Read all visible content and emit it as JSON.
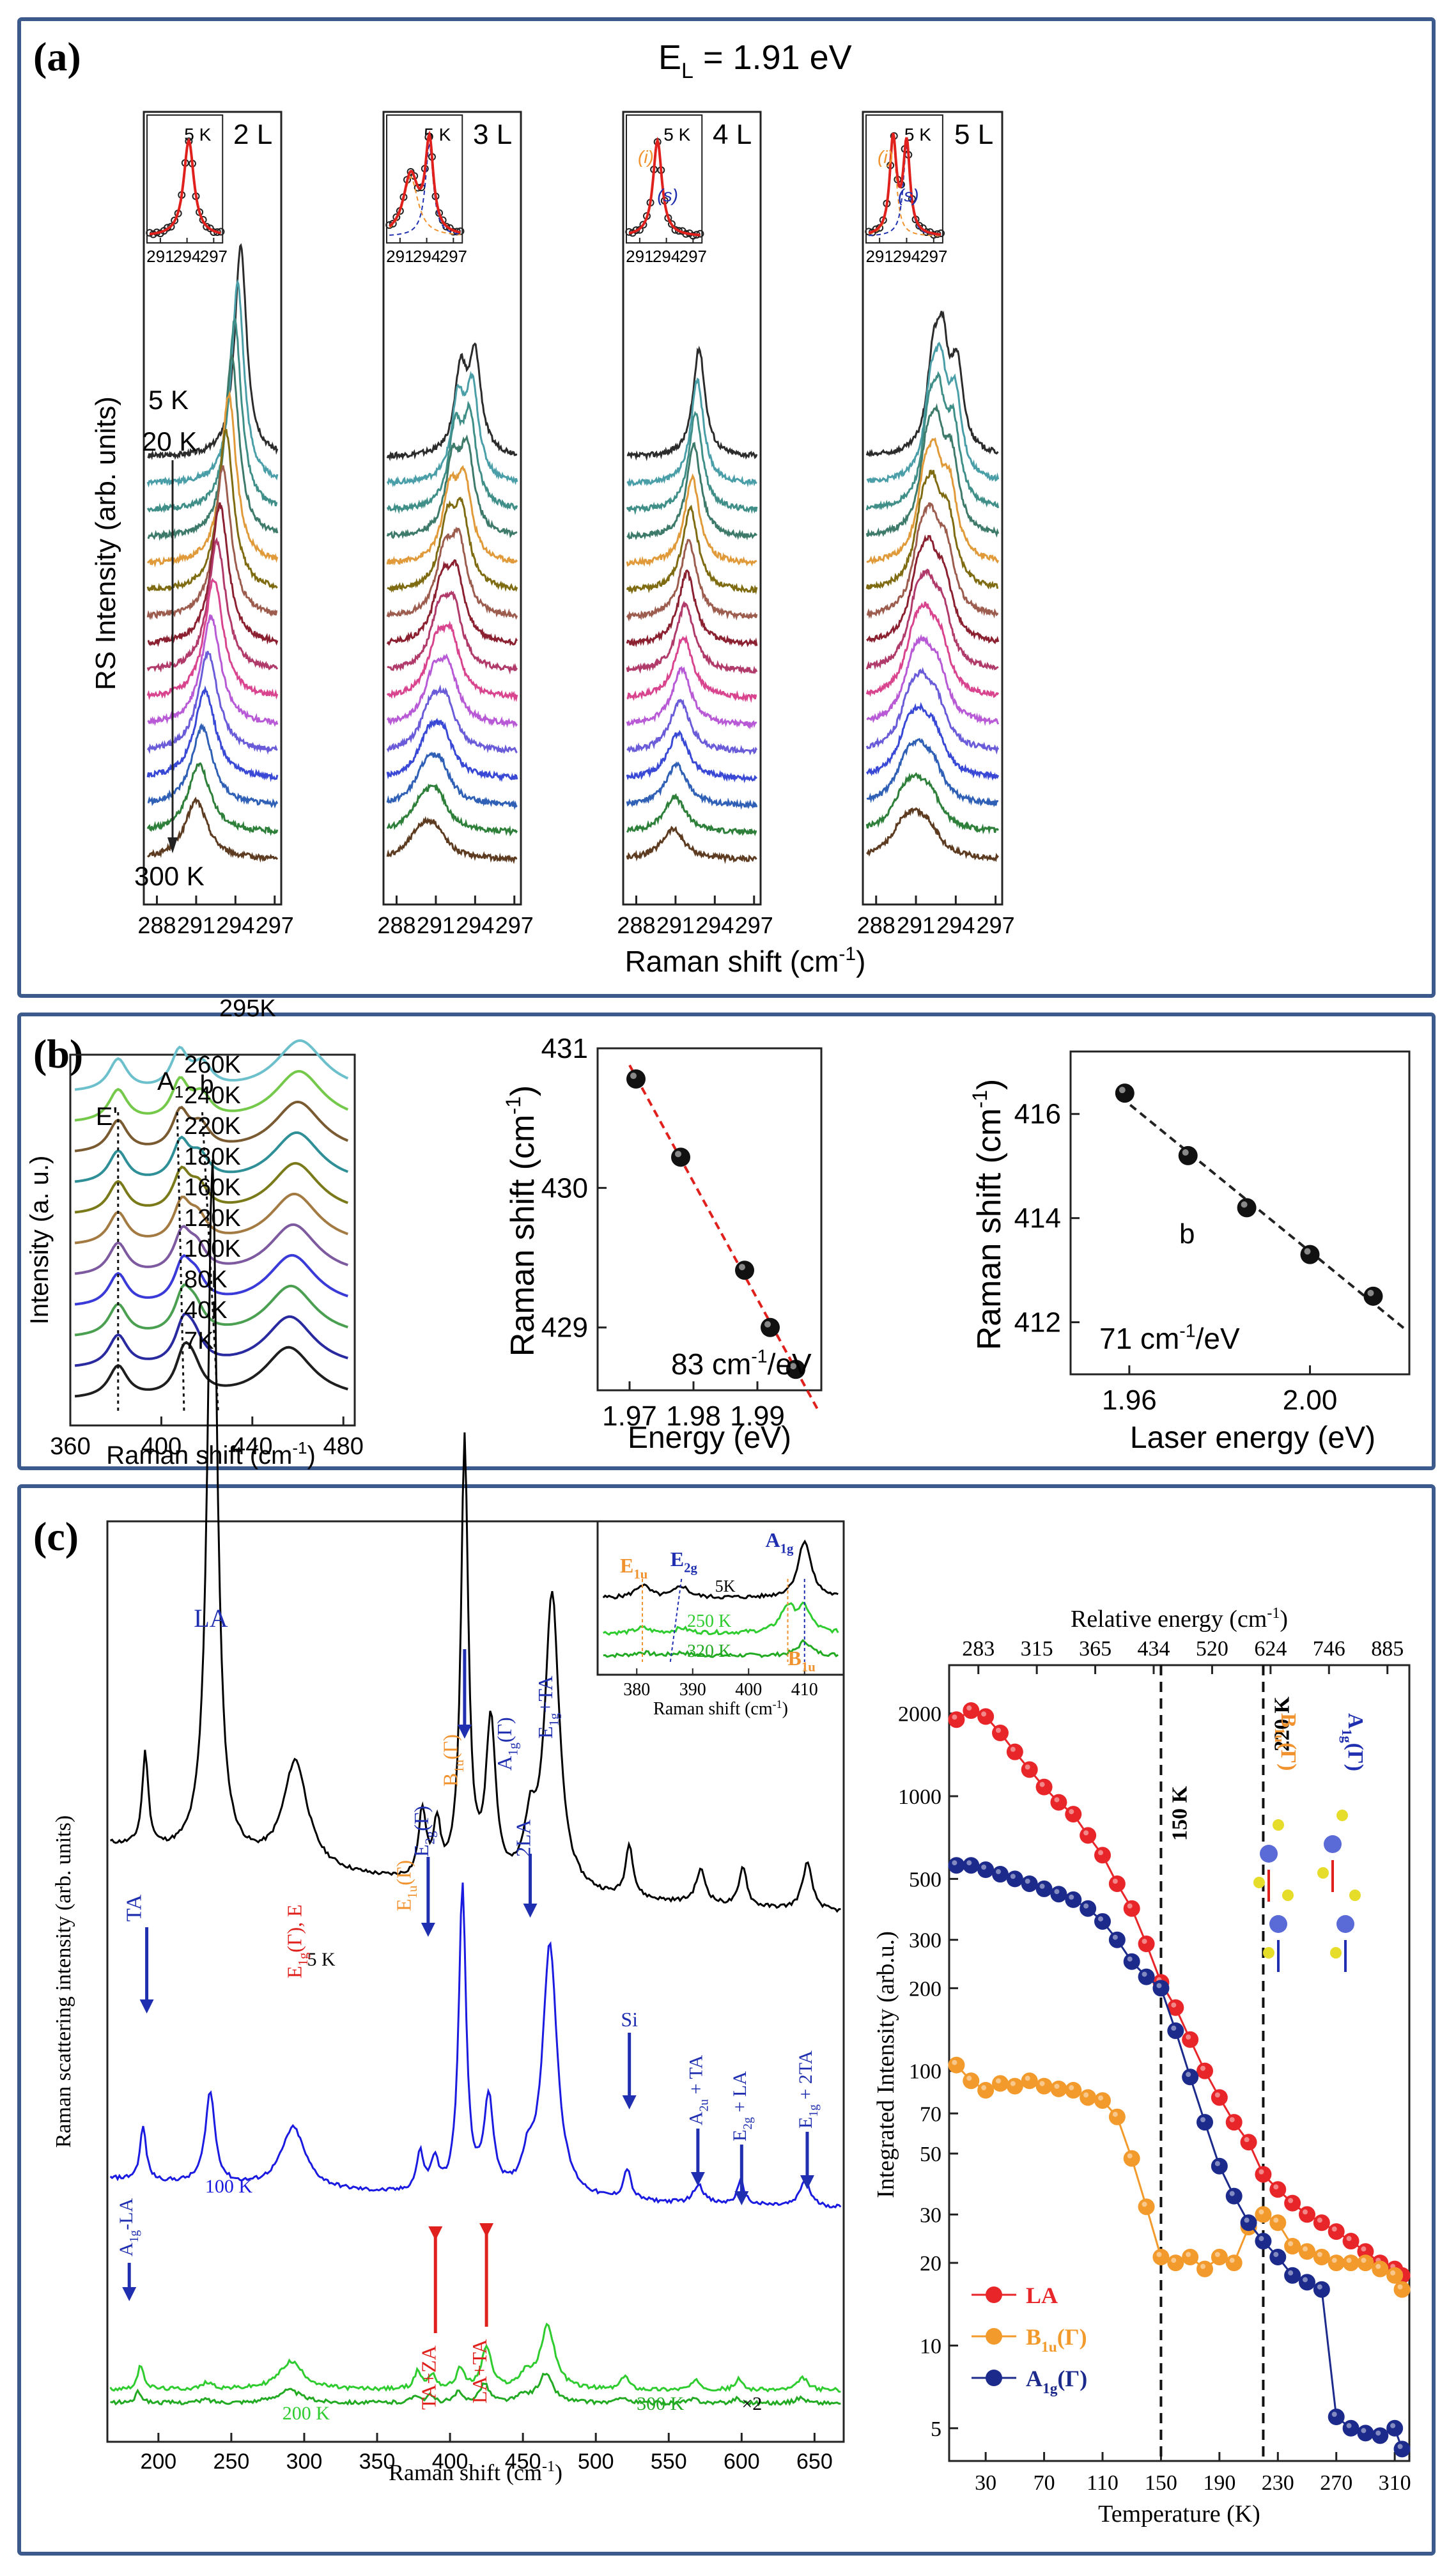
{
  "figure_title": "Raman spectra of layered samples (panels a, b, c)",
  "colors": {
    "frame": "#3c5a8c",
    "fit": "#e0201c",
    "dash_orange": "#f0922e",
    "dash_blue": "#1f2fb0",
    "red_mark": "#e0201c",
    "blue_mark": "#1f2fb0",
    "orange_mark": "#f0922e"
  },
  "panel_a": {
    "label": "(a)",
    "title": "E",
    "title_sub": "L",
    "title_value": " = 1.91 eV",
    "ylabel": "RS Intensity (arb. units)",
    "xlabel": "Raman shift (cm",
    "xlabel_sup": "-1",
    "xlabel_end": ")",
    "temp_top": "5 K",
    "temp_second": "20 K",
    "temp_bottom": "300 K",
    "insets_temp": "5 K",
    "inset_ticks": [
      "291",
      "294",
      "297"
    ],
    "inset_i": "(i)",
    "inset_s": "(s)",
    "ticks": [
      "288",
      "291",
      "294",
      "297"
    ],
    "trace_colors": [
      "#2b2b2b",
      "#4a9ea8",
      "#3f8f88",
      "#3d7a6a",
      "#e09a3a",
      "#7f6b12",
      "#9c5c4e",
      "#8a2030",
      "#b03a6a",
      "#d9448f",
      "#b85ad6",
      "#6a5cd8",
      "#3949d6",
      "#2f60b6",
      "#2d7f3a",
      "#5c3b20"
    ],
    "plots": [
      {
        "title": "2 L",
        "peaks": [
          {
            "top": 294.4,
            "bot": 291.0
          }
        ]
      },
      {
        "title": "3 L",
        "peaks": [
          {
            "top": 294.0,
            "bot": 290.9
          },
          {
            "top": 292.9,
            "bot": 289.8
          }
        ]
      },
      {
        "title": "4 L",
        "peaks": [
          {
            "top": 292.8,
            "bot": 290.8
          }
        ]
      },
      {
        "title": "5 L",
        "peaks": [
          {
            "top": 293.0,
            "bot": 290.9
          },
          {
            "top": 294.1,
            "bot": 292.0
          },
          {
            "top": 292.3,
            "bot": 289.9
          }
        ]
      }
    ]
  },
  "panel_b": {
    "label": "(b)",
    "spectra": {
      "xlabel": "Raman shift (cm",
      "xlabel_sup": "-1",
      "xlabel_end": ")",
      "ylabel": "Intensity (a. u.)",
      "ticks": [
        "360",
        "400",
        "440",
        "480"
      ],
      "mode_E": "E'",
      "mode_A": "A",
      "mode_A_sup": "'",
      "mode_A_sub": "1",
      "mode_b": "b",
      "temps": [
        "295K",
        "260K",
        "240K",
        "220K",
        "180K",
        "160K",
        "120K",
        "100K",
        "80K",
        "40K",
        "7K"
      ],
      "trace_colors": [
        "#6cc0cc",
        "#74c84a",
        "#7a5a30",
        "#2e8f96",
        "#7a7a1a",
        "#a37a42",
        "#7d5aa0",
        "#3a3ad8",
        "#4aa050",
        "#2a2aa0",
        "#1e1e1e"
      ]
    },
    "energy_plot": {
      "chart_data": {
        "type": "scatter",
        "x": [
          1.971,
          1.978,
          1.988,
          1.992,
          1.996
        ],
        "y": [
          430.78,
          430.22,
          429.41,
          429.0,
          428.7
        ],
        "xlim": [
          1.965,
          2.0
        ],
        "ylim": [
          428.55,
          431.0
        ],
        "xlabel": "Energy (eV)",
        "ylabel": "Raman shift (cm-1)",
        "fit_color": "#e0201c"
      },
      "xlabel": "Energy (eV)",
      "ylabel": "Raman shift (cm",
      "ylabel_sup": "-1",
      "ylabel_end": ")",
      "xticks": [
        "1.97",
        "1.98",
        "1.99"
      ],
      "yticks": [
        "429",
        "430",
        "431"
      ],
      "annotation": "83 cm",
      "annotation_sup": "-1",
      "annotation_end": "/eV"
    },
    "laser_plot": {
      "chart_data": {
        "type": "scatter",
        "x": [
          1.959,
          1.973,
          1.986,
          2.0,
          2.014
        ],
        "y": [
          416.4,
          415.2,
          414.2,
          413.3,
          412.5
        ],
        "xlim": [
          1.947,
          2.022
        ],
        "ylim": [
          411.0,
          417.2
        ],
        "xlabel": "Laser energy (eV)",
        "ylabel": "Raman shift (cm-1)",
        "fit_color": "#222222"
      },
      "xlabel": "Laser energy (eV)",
      "ylabel": "Raman shift (cm",
      "ylabel_sup": "-1",
      "ylabel_end": ")",
      "xticks": [
        "1.96",
        "2.00"
      ],
      "yticks": [
        "412",
        "414",
        "416"
      ],
      "point_label": "b",
      "annotation": "71  cm",
      "annotation_sup": "-1",
      "annotation_end": "/eV"
    }
  },
  "panel_c": {
    "label": "(c)",
    "spectra": {
      "ylabel": "Raman scattering intensity (arb. units)",
      "xlabel": "Raman shift (cm",
      "xlabel_sup": "-1",
      "xlabel_end": ")",
      "ticks": [
        "200",
        "250",
        "300",
        "350",
        "400",
        "450",
        "500",
        "550",
        "600",
        "650"
      ],
      "curves": [
        {
          "label": "5 K",
          "color": "#000000"
        },
        {
          "label": "100 K",
          "color": "#1a1ae0"
        },
        {
          "label": "200 K",
          "color": "#2ecc2e"
        },
        {
          "label": "300 K",
          "color": "#22aa22"
        }
      ],
      "x2": "×2",
      "labels": {
        "TA": "TA",
        "LA": "LA",
        "EgEu": "E",
        "EgEu_rest": "(Γ), E",
        "Eu": "(Γ)",
        "E1u": "E",
        "E12g": "E",
        "B1u": "B",
        "A1g": "A",
        "A1gTA": "A",
        "TA_plus": "+TA",
        "E1gTA": "E",
        "twoLA": "2LA",
        "Si": "Si",
        "A2uTA": "A",
        "E12gLA": "E",
        "E1g2TA": "E",
        "A1gLA": "A",
        "TAZA": "TA+ZA",
        "LATA": "LA+TA"
      }
    },
    "inset": {
      "ticks": [
        "380",
        "390",
        "400",
        "410"
      ],
      "xlabel": "Raman shift (cm",
      "xlabel_sup": "-1",
      "xlabel_end": ")",
      "temps": [
        "5K",
        "250 K",
        "320 K"
      ],
      "E1u": "E",
      "E2g": "E",
      "A1g": "A",
      "B1u": "B"
    },
    "intensity": {
      "chart_data": {
        "type": "line",
        "xlabel": "Temperature (K)",
        "ylabel": "Integrated Intensity (arb.u.)",
        "top_xlabel": "Relative energy (cm",
        "xlim": [
          5,
          320
        ],
        "ylim": [
          3.8,
          3000
        ],
        "yscale": "log",
        "series": [
          {
            "name": "LA",
            "color": "#e8262a",
            "x": [
              10,
              20,
              30,
              40,
              50,
              60,
              70,
              80,
              90,
              100,
              110,
              120,
              130,
              140,
              150,
              160,
              170,
              180,
              190,
              200,
              210,
              220,
              230,
              240,
              250,
              260,
              270,
              280,
              290,
              300,
              310,
              315
            ],
            "y": [
              1900,
              2050,
              1950,
              1700,
              1450,
              1250,
              1080,
              950,
              860,
              720,
              610,
              480,
              390,
              290,
              210,
              170,
              130,
              100,
              80,
              65,
              55,
              42,
              37,
              33,
              30,
              28,
              26,
              24,
              22,
              20,
              19,
              18
            ]
          },
          {
            "name": "B1u(Γ)",
            "color": "#f39a2c",
            "x": [
              10,
              20,
              30,
              40,
              50,
              60,
              70,
              80,
              90,
              100,
              110,
              120,
              130,
              140,
              150,
              160,
              170,
              180,
              190,
              200,
              210,
              220,
              230,
              240,
              250,
              260,
              270,
              280,
              290,
              300,
              310,
              315
            ],
            "y": [
              105,
              92,
              85,
              90,
              88,
              92,
              88,
              86,
              85,
              80,
              78,
              68,
              48,
              32,
              21,
              20,
              21,
              19,
              21,
              20,
              27,
              30,
              28,
              23,
              22,
              21,
              20,
              20,
              20,
              19,
              18,
              16
            ]
          },
          {
            "name": "A1g(Γ)",
            "color": "#1c2a8c",
            "x": [
              10,
              20,
              30,
              40,
              50,
              60,
              70,
              80,
              90,
              100,
              110,
              120,
              130,
              140,
              150,
              160,
              170,
              180,
              190,
              200,
              210,
              220,
              230,
              240,
              250,
              260,
              270,
              280,
              290,
              300,
              310,
              315
            ],
            "y": [
              560,
              560,
              540,
              520,
              500,
              480,
              460,
              440,
              420,
              390,
              350,
              300,
              250,
              220,
              200,
              140,
              95,
              65,
              45,
              35,
              28,
              24,
              21,
              18,
              17,
              16,
              5.5,
              5,
              4.8,
              4.7,
              5,
              4.2
            ]
          }
        ]
      },
      "xlabel": "Temperature (K)",
      "ylabel": "Integrated Intensity (arb.u.)",
      "top_xlabel": "Relative energy (cm",
      "top_xlabel_sup": "-1",
      "top_xlabel_end": ")",
      "xticks": [
        "30",
        "70",
        "110",
        "150",
        "190",
        "230",
        "270",
        "310"
      ],
      "top_ticks": [
        "283",
        "315",
        "365",
        "434",
        "520",
        "624",
        "746",
        "885"
      ],
      "yticks": [
        "5",
        "10",
        "20",
        "30",
        "50",
        "70",
        "100",
        "200",
        "300",
        "500",
        "1000",
        "2000"
      ],
      "line150": "150 K",
      "line220": "220 K",
      "legend": [
        "LA",
        "B",
        "A"
      ],
      "mol_B1u": "B",
      "mol_A1g": "A"
    }
  }
}
